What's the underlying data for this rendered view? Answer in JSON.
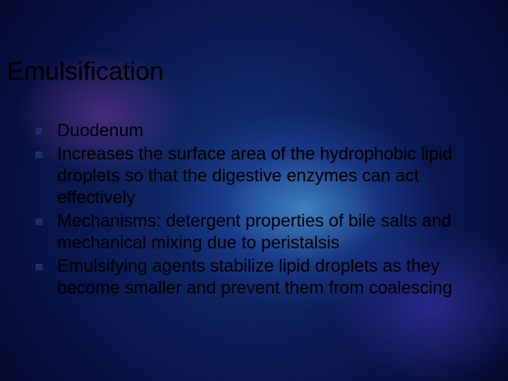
{
  "slide": {
    "title": "Emulsification",
    "title_fontsize": 36,
    "title_color": "#000000",
    "bullets": [
      {
        "text": "Duodenum"
      },
      {
        "text": "Increases the surface area of the hydrophobic lipid droplets so that the digestive enzymes can act effectively"
      },
      {
        "text": "Mechanisms: detergent properties of bile salts and mechanical mixing due to peristalsis"
      },
      {
        "text": "Emulsifying agents stabilize lipid droplets as they become smaller and prevent them from coalescing"
      }
    ],
    "bullet_marker_color": "#1a2a6a",
    "body_fontsize": 25,
    "body_color": "#000000",
    "background": {
      "type": "abstract-gradient",
      "colors": [
        "#050a30",
        "#0a1850",
        "#14357a",
        "#64c8ff",
        "#b450c8",
        "#463cc8"
      ]
    }
  }
}
